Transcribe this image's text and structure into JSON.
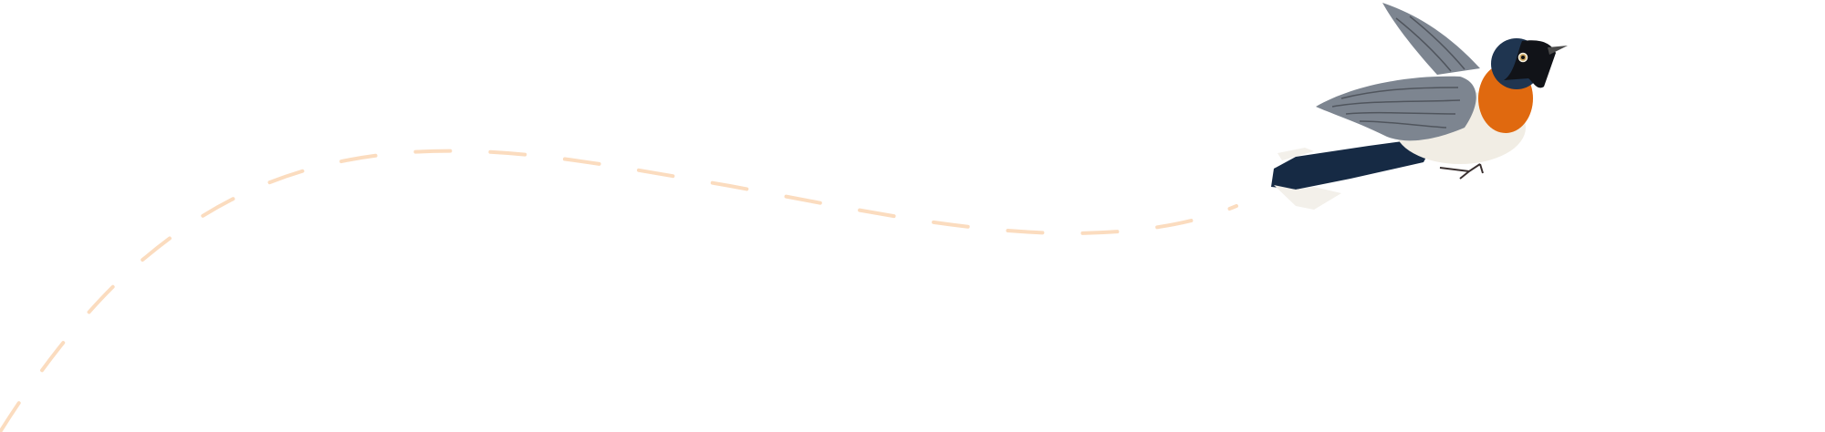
{
  "illustration": {
    "subject": "bird-in-flight",
    "colors": {
      "background": "#ffffff",
      "flight_path": "#fbdcbf",
      "breast": "#e0690f",
      "head": "#1f3550",
      "mask": "#111318",
      "wing": "#7d8590",
      "body": "#f1ede4",
      "tail": "#162a44"
    }
  }
}
